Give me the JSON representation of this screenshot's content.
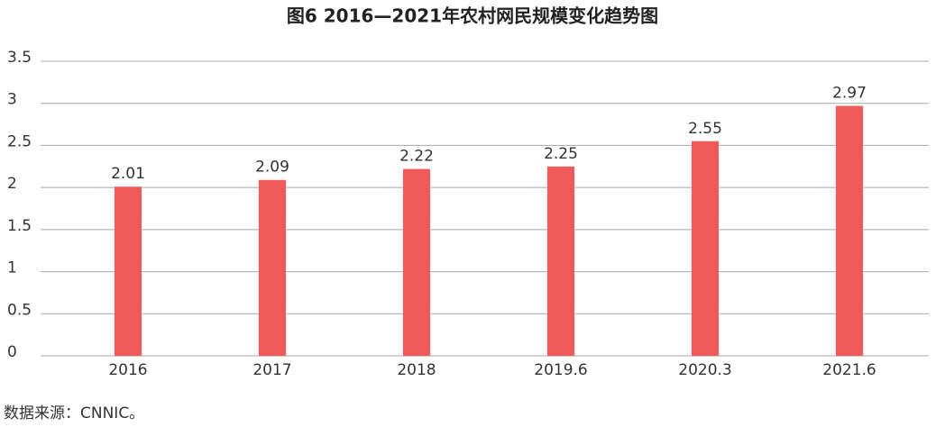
{
  "chart_data": {
    "type": "bar",
    "title": "图6  2016—2021年农村网民规模变化趋势图",
    "categories": [
      "2016",
      "2017",
      "2018",
      "2019.6",
      "2020.3",
      "2021.6"
    ],
    "values": [
      2.01,
      2.09,
      2.22,
      2.25,
      2.55,
      2.97
    ],
    "color": "#f25a5a",
    "ylim": [
      0,
      3.5
    ],
    "yticks": [
      0,
      0.5,
      1,
      1.5,
      2,
      2.5,
      3,
      3.5
    ],
    "grid": true,
    "source": "数据来源：CNNIC。"
  }
}
